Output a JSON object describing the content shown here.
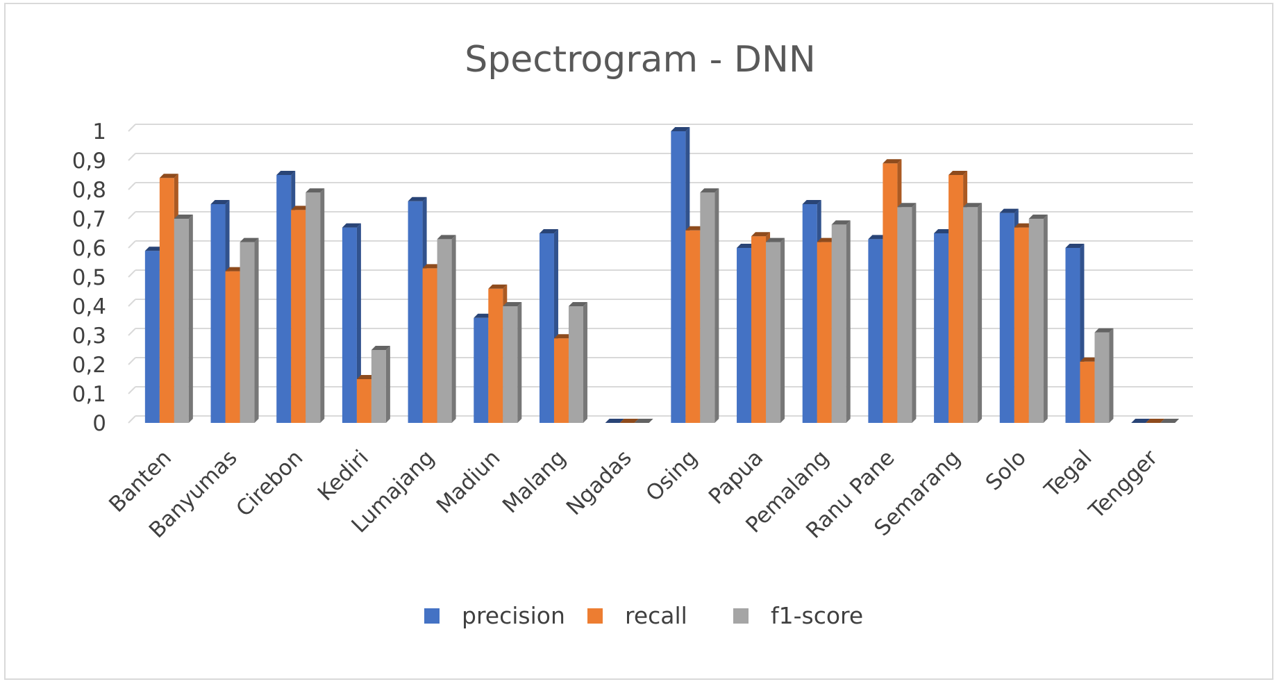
{
  "chart_data": {
    "type": "bar",
    "style": "3d-clustered-column",
    "title": "Spectrogram - DNN",
    "xlabel": "",
    "ylabel": "",
    "ylim": [
      0,
      1
    ],
    "y_ticks": [
      "0",
      "0,1",
      "0,2",
      "0,3",
      "0,4",
      "0,5",
      "0,6",
      "0,7",
      "0,8",
      "0,9",
      "1"
    ],
    "grid": true,
    "legend_position": "bottom",
    "categories": [
      "Banten",
      "Banyumas",
      "Cirebon",
      "Kediri",
      "Lumajang",
      "Madiun",
      "Malang",
      "Ngadas",
      "Osing",
      "Papua",
      "Pemalang",
      "Ranu Pane",
      "Semarang",
      "Solo",
      "Tegal",
      "Tengger"
    ],
    "series": [
      {
        "name": "precision",
        "color": "#4472c4",
        "values": [
          0.59,
          0.75,
          0.85,
          0.67,
          0.76,
          0.36,
          0.65,
          0.0,
          1.0,
          0.6,
          0.75,
          0.63,
          0.65,
          0.72,
          0.6,
          0.0
        ]
      },
      {
        "name": "recall",
        "color": "#ed7d31",
        "values": [
          0.84,
          0.52,
          0.73,
          0.15,
          0.53,
          0.46,
          0.29,
          0.0,
          0.66,
          0.64,
          0.62,
          0.89,
          0.85,
          0.67,
          0.21,
          0.0
        ]
      },
      {
        "name": "f1-score",
        "color": "#a5a5a5",
        "values": [
          0.7,
          0.62,
          0.79,
          0.25,
          0.63,
          0.4,
          0.4,
          0.0,
          0.79,
          0.62,
          0.68,
          0.74,
          0.74,
          0.7,
          0.31,
          0.0
        ]
      }
    ]
  }
}
